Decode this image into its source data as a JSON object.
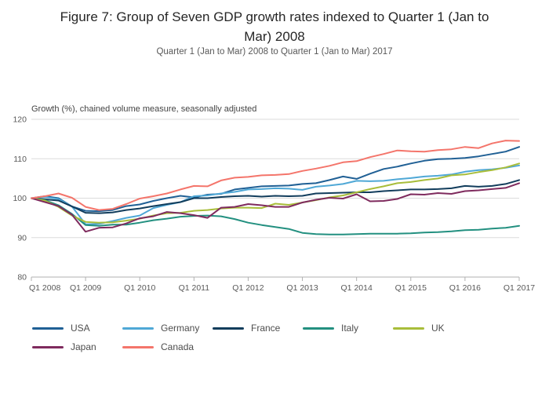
{
  "page": {
    "title": "Figure 7: Group of Seven GDP growth rates indexed to Quarter 1 (Jan to Mar) 2008",
    "subtitle": "Quarter 1 (Jan to Mar) 2008 to Quarter 1 (Jan to Mar) 2017",
    "axis_note": "Growth (%), chained volume measure, seasonally adjusted"
  },
  "chart_data": {
    "type": "line",
    "title": "Figure 7: Group of Seven GDP growth rates indexed to Quarter 1 (Jan to Mar) 2008",
    "subtitle": "Quarter 1 (Jan to Mar) 2008 to Quarter 1 (Jan to Mar) 2017",
    "ylabel": "Growth (%), chained volume measure, seasonally adjusted",
    "xlabel": "",
    "ylim": [
      80,
      120
    ],
    "yticks": [
      80,
      90,
      100,
      110,
      120
    ],
    "x_tick_labels": [
      "Q1 2008",
      "Q1 2009",
      "Q1 2010",
      "Q1 2011",
      "Q1 2012",
      "Q1 2013",
      "Q1 2014",
      "Q1 2015",
      "Q1 2016",
      "Q1 2017"
    ],
    "x_frequency": "quarterly",
    "x_start": "Q1 2008",
    "x_end": "Q1 2017",
    "points_per_series": 37,
    "grid": true,
    "legend_position": "bottom",
    "gridline_color": "#dbdbdb",
    "axis_color": "#b0b0b0",
    "series": [
      {
        "name": "USA",
        "color": "#206095",
        "values": [
          100,
          100.5,
          100.0,
          97.9,
          96.8,
          96.7,
          97.0,
          98.0,
          98.4,
          99.3,
          100.0,
          100.6,
          100.2,
          100.9,
          101.1,
          102.2,
          102.6,
          103.0,
          103.1,
          103.2,
          103.6,
          103.8,
          104.6,
          105.5,
          104.9,
          106.2,
          107.4,
          108.0,
          108.8,
          109.5,
          109.9,
          110.0,
          110.2,
          110.6,
          111.2,
          111.8,
          113.0
        ]
      },
      {
        "name": "Germany",
        "color": "#4fa8d6",
        "values": [
          100,
          100.3,
          99.8,
          97.9,
          93.4,
          93.5,
          94.2,
          95.0,
          95.6,
          97.5,
          98.3,
          99.0,
          100.5,
          100.7,
          101.2,
          101.6,
          102.2,
          102.3,
          102.5,
          102.4,
          102.1,
          102.9,
          103.2,
          103.6,
          104.4,
          104.3,
          104.4,
          104.8,
          105.1,
          105.5,
          105.7,
          106.0,
          106.7,
          107.1,
          107.3,
          107.7,
          108.3
        ]
      },
      {
        "name": "France",
        "color": "#123d5c",
        "values": [
          100,
          99.7,
          99.4,
          97.9,
          96.3,
          96.2,
          96.4,
          97.0,
          97.4,
          98.0,
          98.5,
          99.0,
          100.0,
          100.0,
          100.3,
          100.5,
          100.6,
          100.4,
          100.6,
          100.5,
          100.6,
          101.2,
          101.3,
          101.4,
          101.5,
          101.5,
          101.8,
          102.0,
          102.2,
          102.2,
          102.3,
          102.5,
          103.1,
          102.9,
          103.1,
          103.6,
          104.6
        ]
      },
      {
        "name": "Italy",
        "color": "#239080",
        "values": [
          100,
          99.5,
          98.2,
          96.0,
          93.2,
          93.0,
          93.3,
          93.3,
          93.8,
          94.4,
          94.8,
          95.3,
          95.5,
          95.6,
          95.4,
          94.7,
          93.8,
          93.2,
          92.7,
          92.2,
          91.2,
          90.9,
          90.8,
          90.8,
          90.9,
          91.0,
          91.0,
          91.0,
          91.1,
          91.3,
          91.4,
          91.6,
          91.9,
          92.0,
          92.3,
          92.5,
          93.0
        ]
      },
      {
        "name": "UK",
        "color": "#a8bd3a",
        "values": [
          100,
          99.4,
          97.8,
          95.6,
          94.0,
          93.8,
          93.9,
          94.3,
          94.8,
          95.6,
          96.2,
          96.3,
          96.8,
          97.0,
          97.4,
          97.6,
          97.6,
          97.5,
          98.6,
          98.3,
          98.9,
          99.5,
          100.2,
          100.7,
          101.5,
          102.3,
          103.0,
          103.8,
          104.1,
          104.6,
          105.0,
          105.8,
          106.0,
          106.6,
          107.1,
          107.8,
          108.8
        ]
      },
      {
        "name": "Japan",
        "color": "#7f2b5e",
        "values": [
          100,
          99.0,
          98.0,
          95.8,
          91.5,
          92.5,
          92.6,
          93.6,
          94.9,
          95.4,
          96.5,
          96.2,
          95.7,
          95.0,
          97.6,
          97.8,
          98.5,
          98.2,
          97.8,
          97.8,
          98.9,
          99.6,
          100.1,
          99.9,
          101.0,
          99.2,
          99.3,
          99.8,
          101.0,
          100.9,
          101.3,
          101.1,
          101.8,
          102.0,
          102.3,
          102.6,
          103.8
        ]
      },
      {
        "name": "Canada",
        "color": "#f4756b",
        "values": [
          100,
          100.5,
          101.2,
          100.1,
          97.8,
          97.0,
          97.3,
          98.5,
          99.9,
          100.5,
          101.2,
          102.2,
          103.1,
          103.0,
          104.5,
          105.2,
          105.4,
          105.8,
          105.9,
          106.1,
          106.9,
          107.5,
          108.2,
          109.1,
          109.4,
          110.4,
          111.2,
          112.1,
          111.9,
          111.8,
          112.2,
          112.4,
          113.0,
          112.7,
          113.9,
          114.6,
          114.5
        ]
      }
    ]
  }
}
